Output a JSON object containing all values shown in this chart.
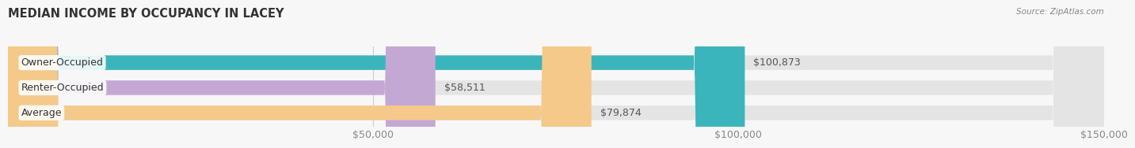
{
  "title": "MEDIAN INCOME BY OCCUPANCY IN LACEY",
  "source": "Source: ZipAtlas.com",
  "categories": [
    "Owner-Occupied",
    "Renter-Occupied",
    "Average"
  ],
  "values": [
    100873,
    58511,
    79874
  ],
  "bar_colors": [
    "#3ab5bb",
    "#c4a8d4",
    "#f5c98a"
  ],
  "label_texts": [
    "$100,873",
    "$58,511",
    "$79,874"
  ],
  "xlim": [
    0,
    150000
  ],
  "xticks": [
    0,
    50000,
    100000,
    150000
  ],
  "xtick_labels": [
    "",
    "$50,000",
    "$100,000",
    "$150,000"
  ],
  "background_color": "#f7f7f7",
  "bar_bg": "#e4e4e4",
  "title_fontsize": 10.5,
  "tick_fontsize": 9,
  "label_fontsize": 9,
  "cat_fontsize": 9
}
